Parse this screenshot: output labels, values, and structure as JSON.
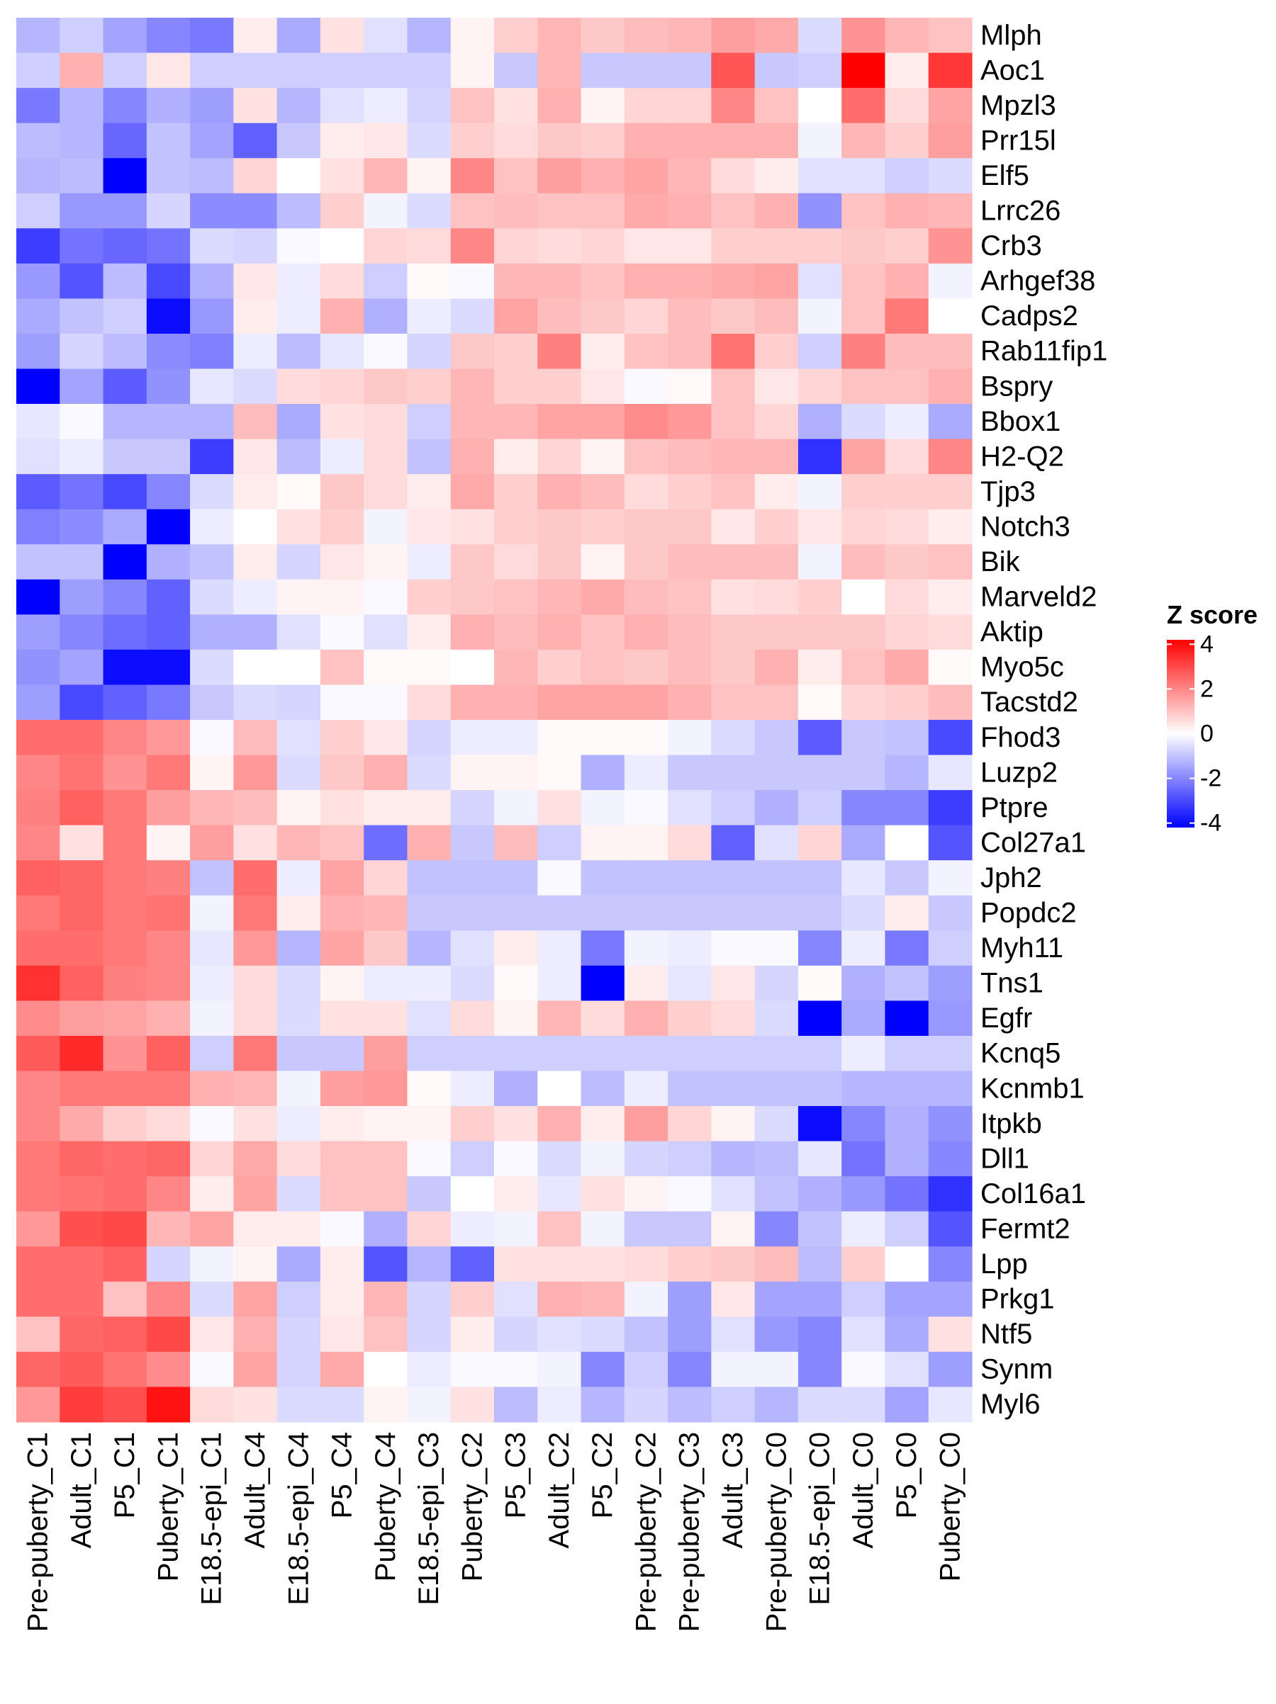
{
  "chart_data": {
    "type": "heatmap",
    "rows": [
      "Mlph",
      "Aoc1",
      "Mpzl3",
      "Prr15l",
      "Elf5",
      "Lrrc26",
      "Crb3",
      "Arhgef38",
      "Cadps2",
      "Rab11fip1",
      "Bspry",
      "Bbox1",
      "H2-Q2",
      "Tjp3",
      "Notch3",
      "Bik",
      "Marveld2",
      "Aktip",
      "Myo5c",
      "Tacstd2",
      "Fhod3",
      "Luzp2",
      "Ptpre",
      "Col27a1",
      "Jph2",
      "Popdc2",
      "Myh11",
      "Tns1",
      "Egfr",
      "Kcnq5",
      "Kcnmb1",
      "Itpkb",
      "Dll1",
      "Col16a1",
      "Fermt2",
      "Lpp",
      "Prkg1",
      "Ntf5",
      "Synm",
      "Myl6"
    ],
    "columns": [
      "Pre-puberty_C1",
      "Adult_C1",
      "P5_C1",
      "Puberty_C1",
      "E18.5-epi_C1",
      "Adult_C4",
      "E18.5-epi_C4",
      "P5_C4",
      "Puberty_C4",
      "E18.5-epi_C3",
      "Puberty_C2",
      "P5_C3",
      "Adult_C2",
      "P5_C2",
      "Pre-puberty_C2",
      "Pre-puberty_C3",
      "Adult_C3",
      "Pre-puberty_C0",
      "E18.5-epi_C0",
      "Adult_C0",
      "P5_C0",
      "Puberty_C0"
    ],
    "values": [
      [
        -1.2,
        -0.8,
        -1.5,
        -2.0,
        -2.2,
        0.3,
        -1.4,
        0.5,
        -0.5,
        -1.2,
        0.2,
        0.8,
        1.2,
        0.9,
        1.1,
        1.2,
        1.6,
        1.4,
        -0.6,
        1.8,
        1.2,
        1.0
      ],
      [
        -0.8,
        1.3,
        -0.8,
        0.4,
        -0.8,
        -0.8,
        -0.8,
        -0.8,
        -0.8,
        -0.8,
        0.2,
        -0.9,
        1.2,
        -0.9,
        -0.9,
        -0.9,
        2.8,
        -0.9,
        -0.8,
        4.2,
        0.3,
        3.3
      ],
      [
        -2.2,
        -1.2,
        -2.0,
        -1.3,
        -1.6,
        0.5,
        -1.2,
        -0.5,
        -0.3,
        -0.7,
        1.0,
        0.5,
        1.3,
        0.2,
        0.7,
        0.7,
        2.0,
        1.0,
        0.0,
        2.4,
        0.6,
        1.5
      ],
      [
        -1.1,
        -1.2,
        -2.5,
        -1.0,
        -1.5,
        -2.6,
        -0.9,
        0.3,
        0.4,
        -0.6,
        0.8,
        0.6,
        0.9,
        0.8,
        1.3,
        1.3,
        1.3,
        1.3,
        -0.2,
        1.2,
        0.8,
        1.6
      ],
      [
        -1.2,
        -1.1,
        -4.2,
        -1.0,
        -1.1,
        0.7,
        0.0,
        0.5,
        1.2,
        0.2,
        2.0,
        1.0,
        1.6,
        1.3,
        1.5,
        1.2,
        0.6,
        0.3,
        -0.5,
        -0.5,
        -0.8,
        -0.6
      ],
      [
        -0.8,
        -1.7,
        -1.7,
        -0.7,
        -1.9,
        -1.9,
        -1.1,
        0.8,
        -0.2,
        -0.6,
        1.0,
        1.1,
        1.0,
        1.0,
        1.4,
        1.3,
        1.0,
        1.3,
        -1.8,
        1.0,
        1.3,
        1.2
      ],
      [
        -3.2,
        -2.3,
        -2.5,
        -2.3,
        -0.6,
        -0.7,
        -0.1,
        0.0,
        0.7,
        0.6,
        2.0,
        0.7,
        0.6,
        0.7,
        0.4,
        0.4,
        0.8,
        0.8,
        0.8,
        0.9,
        0.8,
        1.8
      ],
      [
        -1.7,
        -2.8,
        -1.1,
        -3.0,
        -1.3,
        0.4,
        -0.3,
        0.6,
        -0.8,
        0.1,
        -0.1,
        1.2,
        1.2,
        1.0,
        1.3,
        1.3,
        1.4,
        1.5,
        -0.5,
        1.0,
        1.3,
        -0.2
      ],
      [
        -1.4,
        -1.0,
        -0.8,
        -4.0,
        -1.7,
        0.3,
        -0.3,
        1.3,
        -1.3,
        -0.3,
        -0.6,
        1.5,
        1.1,
        0.9,
        0.7,
        1.1,
        0.9,
        1.1,
        -0.2,
        1.0,
        2.2,
        0.0
      ],
      [
        -1.6,
        -0.7,
        -1.1,
        -1.9,
        -2.1,
        -0.3,
        -1.1,
        -0.4,
        -0.1,
        -0.7,
        0.9,
        0.8,
        2.1,
        0.3,
        1.0,
        1.1,
        2.3,
        0.8,
        -0.8,
        2.1,
        1.1,
        1.1
      ],
      [
        -4.2,
        -1.5,
        -2.7,
        -1.8,
        -0.4,
        -0.6,
        0.6,
        0.7,
        0.9,
        0.8,
        1.2,
        0.8,
        0.8,
        0.4,
        -0.1,
        0.1,
        1.0,
        0.4,
        0.7,
        1.0,
        1.0,
        1.3
      ],
      [
        -0.4,
        -0.1,
        -1.2,
        -1.2,
        -1.2,
        1.1,
        -1.4,
        0.5,
        0.6,
        -0.8,
        1.2,
        1.2,
        1.5,
        1.5,
        1.9,
        1.7,
        1.0,
        0.7,
        -1.3,
        -0.6,
        -0.3,
        -1.4
      ],
      [
        -0.5,
        -0.3,
        -0.9,
        -0.9,
        -3.2,
        0.4,
        -1.1,
        -0.3,
        0.6,
        -1.0,
        1.3,
        0.3,
        0.7,
        0.2,
        1.0,
        1.1,
        1.2,
        1.2,
        -3.4,
        1.5,
        0.6,
        2.0
      ],
      [
        -2.7,
        -2.3,
        -3.0,
        -2.0,
        -0.6,
        0.3,
        0.1,
        0.9,
        0.6,
        0.3,
        1.4,
        0.8,
        1.3,
        1.1,
        0.6,
        0.8,
        1.0,
        0.3,
        -0.2,
        0.8,
        0.8,
        0.8
      ],
      [
        -2.1,
        -1.9,
        -1.4,
        -4.2,
        -0.3,
        0.0,
        0.5,
        0.8,
        -0.2,
        0.4,
        0.5,
        0.8,
        0.9,
        0.8,
        0.9,
        0.9,
        0.4,
        0.8,
        0.4,
        0.7,
        0.6,
        0.3
      ],
      [
        -1.0,
        -1.0,
        -4.2,
        -1.3,
        -1.0,
        0.3,
        -0.7,
        0.4,
        0.2,
        -0.3,
        0.9,
        0.6,
        0.9,
        0.2,
        0.9,
        1.1,
        1.1,
        1.1,
        -0.2,
        1.1,
        0.9,
        1.0
      ],
      [
        -4.2,
        -1.6,
        -2.0,
        -2.6,
        -0.6,
        -0.3,
        0.2,
        0.2,
        -0.1,
        0.8,
        0.9,
        1.0,
        1.2,
        1.4,
        1.1,
        1.0,
        0.5,
        0.6,
        0.8,
        0.0,
        0.6,
        0.3
      ],
      [
        -1.6,
        -2.0,
        -2.4,
        -2.6,
        -1.3,
        -1.3,
        -0.5,
        -0.1,
        -0.5,
        0.3,
        1.3,
        1.1,
        1.3,
        1.0,
        1.3,
        1.1,
        0.9,
        0.9,
        0.9,
        0.9,
        0.7,
        0.6
      ],
      [
        -1.8,
        -1.5,
        -4.0,
        -4.0,
        -0.6,
        0.0,
        0.0,
        1.0,
        0.1,
        0.1,
        0.0,
        1.2,
        0.8,
        1.0,
        0.9,
        1.1,
        0.9,
        1.3,
        0.3,
        1.0,
        1.4,
        0.1
      ],
      [
        -1.6,
        -3.0,
        -2.6,
        -2.2,
        -0.9,
        -0.6,
        -0.7,
        -0.1,
        -0.1,
        0.6,
        1.3,
        1.3,
        1.5,
        1.5,
        1.5,
        1.3,
        1.0,
        1.0,
        0.1,
        0.7,
        0.8,
        1.1
      ],
      [
        2.4,
        2.4,
        2.0,
        1.7,
        -0.1,
        1.1,
        -0.5,
        0.8,
        0.4,
        -0.7,
        -0.3,
        -0.3,
        0.1,
        0.1,
        0.1,
        -0.2,
        -0.6,
        -0.9,
        -2.7,
        -0.9,
        -1.0,
        -3.0
      ],
      [
        2.0,
        2.3,
        1.8,
        2.2,
        0.2,
        1.7,
        -0.6,
        0.9,
        1.3,
        -0.6,
        0.2,
        0.2,
        0.1,
        -1.3,
        -0.3,
        -0.9,
        -0.9,
        -0.9,
        -0.9,
        -0.9,
        -1.2,
        -0.4
      ],
      [
        2.1,
        2.6,
        2.2,
        1.6,
        1.2,
        1.1,
        0.2,
        0.5,
        0.3,
        0.3,
        -0.7,
        -0.2,
        0.5,
        -0.2,
        -0.1,
        -0.5,
        -0.8,
        -1.3,
        -0.8,
        -2.0,
        -2.0,
        -3.2
      ],
      [
        2.0,
        0.5,
        2.2,
        0.2,
        1.6,
        0.5,
        1.2,
        1.0,
        -2.4,
        1.3,
        -0.9,
        1.1,
        -0.8,
        0.2,
        0.2,
        0.6,
        -2.6,
        -0.5,
        0.7,
        -1.4,
        0.0,
        -2.8
      ],
      [
        2.6,
        2.5,
        2.2,
        2.1,
        -1.0,
        2.4,
        -0.3,
        1.5,
        0.7,
        -1.0,
        -1.0,
        -1.0,
        -0.1,
        -1.0,
        -1.0,
        -1.0,
        -1.0,
        -1.0,
        -1.0,
        -0.4,
        -0.9,
        -0.2
      ],
      [
        2.2,
        2.5,
        2.2,
        2.3,
        -0.2,
        2.2,
        0.3,
        1.3,
        1.2,
        -0.9,
        -0.9,
        -0.9,
        -0.9,
        -0.9,
        -0.9,
        -0.9,
        -0.9,
        -0.9,
        -0.9,
        -0.6,
        0.3,
        -0.9
      ],
      [
        2.4,
        2.4,
        2.2,
        2.0,
        -0.4,
        1.7,
        -1.2,
        1.5,
        0.9,
        -1.2,
        -0.5,
        0.3,
        -0.3,
        -2.2,
        -0.2,
        -0.3,
        -0.1,
        -0.1,
        -2.0,
        -0.3,
        -2.2,
        -0.8
      ],
      [
        3.4,
        2.6,
        2.1,
        2.0,
        -0.3,
        0.6,
        -0.6,
        0.2,
        -0.3,
        -0.3,
        -0.6,
        0.1,
        -0.3,
        -4.2,
        0.3,
        -0.4,
        0.4,
        -0.7,
        0.1,
        -1.3,
        -1.0,
        -1.6
      ],
      [
        1.9,
        1.6,
        1.5,
        1.3,
        -0.2,
        0.6,
        -0.6,
        0.5,
        0.5,
        -0.5,
        0.6,
        0.2,
        1.2,
        0.6,
        1.3,
        0.8,
        0.6,
        -0.6,
        -4.2,
        -1.4,
        -4.2,
        -1.7
      ],
      [
        2.7,
        3.5,
        1.8,
        2.6,
        -0.8,
        2.2,
        -0.9,
        -0.9,
        1.6,
        -0.8,
        -0.8,
        -0.8,
        -0.8,
        -0.8,
        -0.8,
        -0.8,
        -0.8,
        -0.8,
        -0.8,
        -0.3,
        -0.8,
        -0.8
      ],
      [
        2.0,
        2.2,
        2.2,
        2.2,
        1.3,
        1.2,
        -0.2,
        1.6,
        1.7,
        0.1,
        -0.3,
        -1.3,
        0.0,
        -1.1,
        -0.3,
        -1.0,
        -1.0,
        -1.0,
        -1.0,
        -1.2,
        -1.2,
        -1.2
      ],
      [
        2.0,
        1.4,
        0.8,
        0.6,
        -0.1,
        0.5,
        -0.3,
        0.3,
        0.2,
        0.2,
        0.8,
        0.5,
        1.3,
        0.3,
        1.6,
        0.7,
        0.2,
        -0.6,
        -4.0,
        -2.0,
        -1.3,
        -1.8
      ],
      [
        2.2,
        2.5,
        2.4,
        2.5,
        0.7,
        1.4,
        0.6,
        1.0,
        1.0,
        -0.1,
        -0.8,
        -0.1,
        -0.6,
        -0.2,
        -0.7,
        -0.8,
        -1.2,
        -1.1,
        -0.4,
        -2.3,
        -1.3,
        -2.0
      ],
      [
        2.2,
        2.3,
        2.4,
        2.0,
        0.3,
        1.5,
        -0.6,
        1.0,
        1.0,
        -0.9,
        0.0,
        0.3,
        -0.4,
        0.5,
        0.2,
        -0.1,
        -0.5,
        -1.0,
        -1.3,
        -1.7,
        -2.3,
        -3.4
      ],
      [
        1.7,
        2.9,
        3.0,
        1.2,
        1.5,
        0.3,
        0.3,
        -0.1,
        -1.3,
        0.7,
        -0.3,
        -0.2,
        1.0,
        -0.2,
        -0.9,
        -0.9,
        0.2,
        -2.0,
        -1.0,
        -0.3,
        -0.8,
        -2.8
      ],
      [
        2.4,
        2.4,
        2.6,
        -0.7,
        -0.2,
        0.2,
        -1.4,
        0.3,
        -2.8,
        -1.2,
        -2.6,
        0.5,
        0.5,
        0.5,
        0.6,
        0.8,
        0.9,
        1.1,
        -1.1,
        0.8,
        0.0,
        -2.0
      ],
      [
        2.4,
        2.4,
        1.0,
        2.0,
        -0.6,
        1.5,
        -0.8,
        0.3,
        1.2,
        -0.7,
        0.8,
        -0.5,
        1.3,
        1.2,
        -0.2,
        -1.6,
        0.4,
        -1.5,
        -1.5,
        -0.8,
        -1.5,
        -1.5
      ],
      [
        1.0,
        2.5,
        2.6,
        3.0,
        0.4,
        1.3,
        -0.7,
        0.4,
        1.0,
        -0.7,
        0.3,
        -0.7,
        -0.5,
        -0.6,
        -1.0,
        -1.6,
        -0.5,
        -1.7,
        -2.0,
        -0.5,
        -1.4,
        0.5
      ],
      [
        2.5,
        2.7,
        2.3,
        1.9,
        -0.1,
        1.5,
        -0.7,
        1.4,
        0.0,
        -0.3,
        -0.1,
        -0.1,
        -0.2,
        -2.0,
        -0.8,
        -2.0,
        -0.2,
        -0.2,
        -2.0,
        -0.1,
        -0.5,
        -1.6
      ],
      [
        1.7,
        3.2,
        2.9,
        3.9,
        0.6,
        0.5,
        -0.6,
        -0.6,
        0.2,
        -0.2,
        0.5,
        -1.1,
        -0.3,
        -1.2,
        -0.7,
        -1.1,
        -0.8,
        -1.2,
        -0.6,
        -0.6,
        -1.5,
        -0.4
      ]
    ],
    "legend": {
      "title": "Z score",
      "ticks": [
        4,
        2,
        0,
        -2,
        -4
      ],
      "placement": "right",
      "range": [
        -4.2,
        4.2
      ]
    },
    "colors": {
      "low": "#0000ff",
      "mid": "#ffffff",
      "high": "#ff0000"
    }
  }
}
